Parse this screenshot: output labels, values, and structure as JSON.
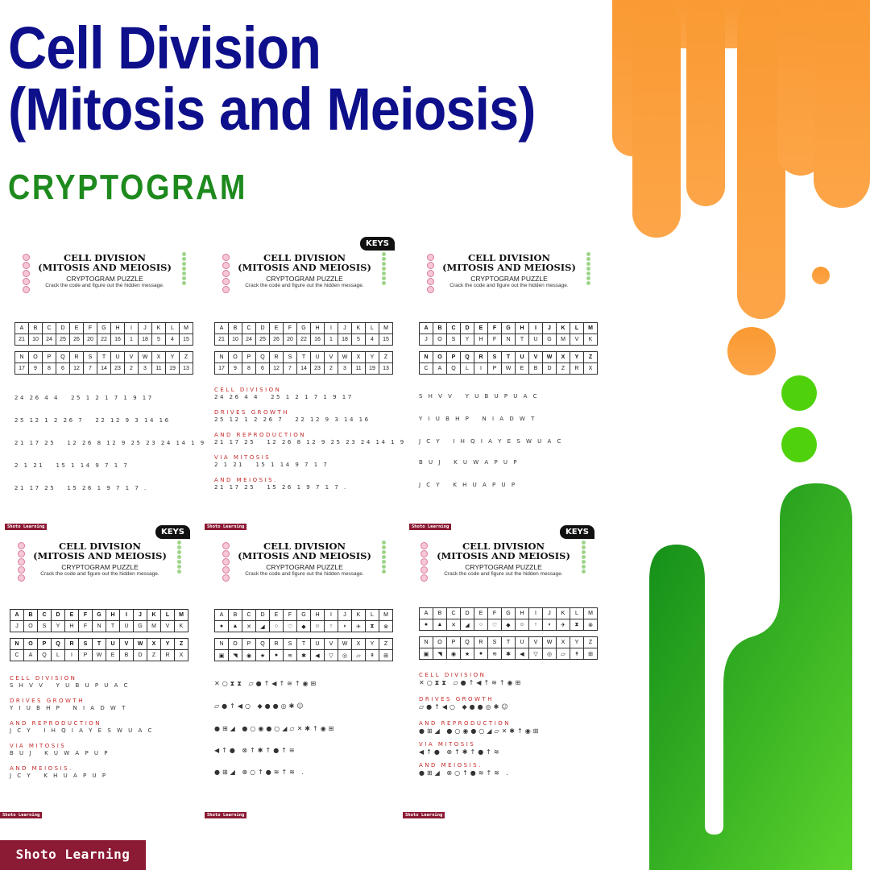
{
  "header": {
    "title_line1": "Cell Division",
    "title_line2": "(Mitosis and Meiosis)",
    "subtitle": "CRYPTOGRAM"
  },
  "colors": {
    "title": "#0e0f8a",
    "subtitle": "#1e8a1e",
    "orange": "#fa9a32",
    "green": "#2ea31f",
    "brand": "#8b1a34"
  },
  "worksheet": {
    "title_line1": "CELL DIVISION",
    "title_line2": "(MITOSIS AND MEIOSIS)",
    "subtitle": "CRYPTOGRAM PUZZLE",
    "instruction": "Crack the code and figure out the hidden message.",
    "keys_label": "KEYS",
    "footer": "Shoto Learning",
    "letters_row1": [
      "A",
      "B",
      "C",
      "D",
      "E",
      "F",
      "G",
      "H",
      "I",
      "J",
      "K",
      "L",
      "M"
    ],
    "letters_row2": [
      "N",
      "O",
      "P",
      "Q",
      "R",
      "S",
      "T",
      "U",
      "V",
      "W",
      "X",
      "Y",
      "Z"
    ],
    "numbers_row1": [
      "21",
      "10",
      "24",
      "25",
      "26",
      "20",
      "22",
      "16",
      "1",
      "18",
      "5",
      "4",
      "15"
    ],
    "numbers_row2": [
      "17",
      "9",
      "8",
      "6",
      "12",
      "7",
      "14",
      "23",
      "2",
      "3",
      "11",
      "19",
      "13"
    ],
    "cipher_row1": [
      "J",
      "O",
      "S",
      "Y",
      "H",
      "F",
      "N",
      "T",
      "U",
      "G",
      "M",
      "V",
      "K"
    ],
    "cipher_row2": [
      "C",
      "A",
      "Q",
      "L",
      "I",
      "P",
      "W",
      "E",
      "B",
      "D",
      "Z",
      "R",
      "X"
    ],
    "symbols_row1": [
      "●",
      "▲",
      "✕",
      "◢",
      "○",
      "♡",
      "◆",
      "☺",
      "↑",
      "◗",
      "✈",
      "⧗",
      "⊗"
    ],
    "symbols_row2": [
      "▣",
      "◥",
      "◉",
      "★",
      "●",
      "≋",
      "✱",
      "◀",
      "▽",
      "◎",
      "▱",
      "↟",
      "⊞"
    ],
    "message_plain": [
      "CELL DIVISION",
      "DRIVES GROWTH",
      "AND REPRODUCTION",
      "VIA MITOSIS",
      "AND MEIOSIS."
    ],
    "message_numbers": [
      "24 26 4 4   25 1 2 1 7 1 9 17",
      "25 12 1 2 26 7   22 12 9 3 14 16",
      "21 17 25   12 26 8 12 9 25 23 24 14 1 9 17",
      "2 1 21   15 1 14 9 7 1 7",
      "21 17 25   15 26 1 9 7 1 7 ."
    ],
    "message_letters": [
      "S H V V   Y U B U P U A C",
      "Y I U B H P   N I A D W T",
      "J C Y   I H Q I A Y E S W U A C",
      "B U J   K U W A P U P",
      "J C Y   K H U A P U P"
    ],
    "message_symbols": [
      "✕○⧗⧗ ▱●↑◀↑≋↑◉⊞",
      "▱●↑◀○ ◆●●◎✱☺",
      "●⊞◢ ●○◉●○◢▱✕✱↑◉⊞",
      "◀↑● ⊗↑✱↑●↑≋",
      "●⊞◢ ⊗○↑●≋↑≋ ."
    ]
  },
  "brand": "Shoto Learning"
}
